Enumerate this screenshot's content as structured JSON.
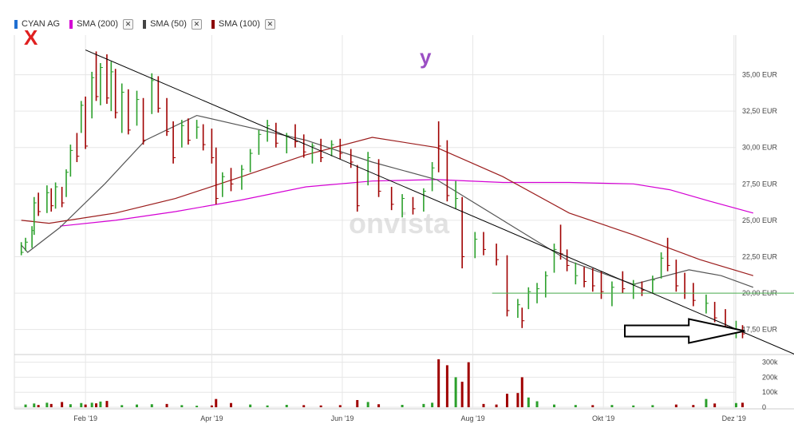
{
  "legend": [
    {
      "label": "CYAN AG",
      "color": "#1f6fd1",
      "closable": false
    },
    {
      "label": "SMA (200)",
      "color": "#d400d4",
      "closable": true
    },
    {
      "label": "SMA (50)",
      "color": "#444444",
      "closable": true
    },
    {
      "label": "SMA (100)",
      "color": "#8b0000",
      "closable": true
    }
  ],
  "close_glyph": "✕",
  "annotations": {
    "x_mark": "X",
    "y_mark": "y"
  },
  "watermark": "onvista",
  "colors": {
    "up": "#2ca02c",
    "down": "#a00000",
    "sma200": "#d400d4",
    "sma50": "#555555",
    "sma100": "#9b1c1c",
    "support": "#4caf50",
    "trendline": "#000000",
    "grid": "#e6e6e6"
  },
  "chart_data": {
    "type": "bar",
    "title": "",
    "x_ticks": [
      "Feb '19",
      "Apr '19",
      "Jun '19",
      "Aug '19",
      "Okt '19",
      "Dez '19"
    ],
    "x_tick_dates": [
      "2019-02-01",
      "2019-04-01",
      "2019-06-01",
      "2019-08-01",
      "2019-10-01",
      "2019-12-01"
    ],
    "xlim": [
      "2019-01-01",
      "2019-12-16"
    ],
    "price_axis": {
      "unit": "EUR",
      "ylim": [
        16.0,
        37.5
      ],
      "ticks": [
        "17,50 EUR",
        "20,00 EUR",
        "22,50 EUR",
        "25,00 EUR",
        "27,50 EUR",
        "30,00 EUR",
        "32,50 EUR",
        "35,00 EUR"
      ],
      "tick_values": [
        17.5,
        20,
        22.5,
        25,
        27.5,
        30,
        32.5,
        35
      ]
    },
    "volume_axis": {
      "ylim": [
        0,
        330000
      ],
      "ticks": [
        "300k",
        "200k",
        "100k",
        "0"
      ],
      "tick_values": [
        300000,
        200000,
        100000,
        0
      ]
    },
    "ohlc": [
      [
        "2019-01-02",
        23.5,
        22.6,
        22.8,
        "u"
      ],
      [
        "2019-01-04",
        23.8,
        22.9,
        23.5,
        "u"
      ],
      [
        "2019-01-07",
        24.6,
        23.1,
        24.3,
        "u"
      ],
      [
        "2019-01-08",
        26.6,
        24.0,
        26.2,
        "u"
      ],
      [
        "2019-01-10",
        26.9,
        25.3,
        25.6,
        "d"
      ],
      [
        "2019-01-14",
        27.4,
        25.5,
        26.9,
        "u"
      ],
      [
        "2019-01-16",
        27.2,
        25.6,
        26.0,
        "d"
      ],
      [
        "2019-01-18",
        27.6,
        25.8,
        27.3,
        "u"
      ],
      [
        "2019-01-21",
        27.3,
        25.9,
        26.2,
        "d"
      ],
      [
        "2019-01-23",
        28.5,
        26.6,
        28.3,
        "u"
      ],
      [
        "2019-01-25",
        30.2,
        28.0,
        29.8,
        "u"
      ],
      [
        "2019-01-28",
        31.0,
        29.0,
        29.4,
        "d"
      ],
      [
        "2019-01-30",
        33.2,
        31.0,
        32.9,
        "u"
      ],
      [
        "2019-02-01",
        33.5,
        29.9,
        30.1,
        "d"
      ],
      [
        "2019-02-04",
        35.2,
        32.0,
        34.8,
        "u"
      ],
      [
        "2019-02-06",
        36.6,
        33.2,
        33.5,
        "d"
      ],
      [
        "2019-02-08",
        35.8,
        32.9,
        35.5,
        "u"
      ],
      [
        "2019-02-11",
        36.4,
        33.0,
        33.4,
        "d"
      ],
      [
        "2019-02-13",
        35.9,
        32.5,
        35.2,
        "u"
      ],
      [
        "2019-02-15",
        35.4,
        32.0,
        32.4,
        "d"
      ],
      [
        "2019-02-18",
        34.4,
        31.0,
        33.8,
        "u"
      ],
      [
        "2019-02-21",
        34.0,
        30.9,
        31.2,
        "d"
      ],
      [
        "2019-02-25",
        33.9,
        31.5,
        33.3,
        "u"
      ],
      [
        "2019-02-28",
        33.4,
        30.2,
        30.5,
        "d"
      ],
      [
        "2019-03-04",
        35.1,
        32.3,
        34.6,
        "u"
      ],
      [
        "2019-03-07",
        34.9,
        32.4,
        32.7,
        "d"
      ],
      [
        "2019-03-11",
        33.4,
        30.8,
        31.1,
        "d"
      ],
      [
        "2019-03-14",
        31.8,
        28.9,
        29.3,
        "d"
      ],
      [
        "2019-03-18",
        31.9,
        30.0,
        31.5,
        "u"
      ],
      [
        "2019-03-21",
        32.0,
        30.2,
        30.5,
        "d"
      ],
      [
        "2019-03-25",
        31.9,
        30.6,
        31.4,
        "u"
      ],
      [
        "2019-03-28",
        31.6,
        29.8,
        30.2,
        "d"
      ],
      [
        "2019-04-01",
        31.3,
        28.9,
        29.3,
        "d"
      ],
      [
        "2019-04-03",
        30.0,
        26.1,
        26.5,
        "d"
      ],
      [
        "2019-04-06",
        28.3,
        26.6,
        28.0,
        "u"
      ],
      [
        "2019-04-10",
        28.6,
        27.0,
        27.5,
        "d"
      ],
      [
        "2019-04-15",
        28.8,
        27.1,
        28.5,
        "u"
      ],
      [
        "2019-04-19",
        29.9,
        28.3,
        29.6,
        "u"
      ],
      [
        "2019-04-23",
        31.2,
        29.5,
        30.9,
        "u"
      ],
      [
        "2019-04-27",
        31.9,
        30.4,
        31.5,
        "u"
      ],
      [
        "2019-05-01",
        31.7,
        30.0,
        30.3,
        "d"
      ],
      [
        "2019-05-06",
        31.0,
        29.6,
        30.8,
        "u"
      ],
      [
        "2019-05-10",
        31.6,
        30.0,
        30.4,
        "d"
      ],
      [
        "2019-05-14",
        30.9,
        29.3,
        29.7,
        "d"
      ],
      [
        "2019-05-18",
        30.3,
        28.9,
        30.1,
        "u"
      ],
      [
        "2019-05-22",
        30.6,
        29.0,
        29.3,
        "d"
      ],
      [
        "2019-05-27",
        30.5,
        29.4,
        30.2,
        "u"
      ],
      [
        "2019-05-31",
        30.6,
        29.2,
        29.6,
        "d"
      ],
      [
        "2019-06-05",
        29.9,
        28.6,
        29.0,
        "d"
      ],
      [
        "2019-06-08",
        28.8,
        25.6,
        26.0,
        "d"
      ],
      [
        "2019-06-13",
        29.7,
        27.4,
        29.3,
        "u"
      ],
      [
        "2019-06-18",
        29.2,
        26.6,
        27.0,
        "d"
      ],
      [
        "2019-06-24",
        27.3,
        25.7,
        26.1,
        "d"
      ],
      [
        "2019-06-29",
        26.8,
        25.2,
        26.5,
        "u"
      ],
      [
        "2019-07-04",
        26.6,
        25.4,
        25.8,
        "d"
      ],
      [
        "2019-07-09",
        27.2,
        25.6,
        27.0,
        "u"
      ],
      [
        "2019-07-13",
        29.0,
        27.0,
        28.6,
        "u"
      ],
      [
        "2019-07-16",
        31.8,
        28.3,
        30.1,
        "d"
      ],
      [
        "2019-07-20",
        30.5,
        26.3,
        26.7,
        "d"
      ],
      [
        "2019-07-24",
        27.7,
        25.8,
        26.5,
        "u"
      ],
      [
        "2019-07-27",
        26.6,
        21.7,
        22.5,
        "d"
      ],
      [
        "2019-08-02",
        24.2,
        22.4,
        23.7,
        "u"
      ],
      [
        "2019-08-06",
        24.2,
        22.6,
        23.0,
        "d"
      ],
      [
        "2019-08-12",
        23.4,
        21.9,
        22.3,
        "d"
      ],
      [
        "2019-08-17",
        22.6,
        18.4,
        18.8,
        "d"
      ],
      [
        "2019-08-22",
        19.6,
        18.3,
        19.2,
        "u"
      ],
      [
        "2019-08-24",
        19.0,
        17.6,
        18.1,
        "d"
      ],
      [
        "2019-08-27",
        20.4,
        18.9,
        20.1,
        "u"
      ],
      [
        "2019-08-31",
        20.7,
        19.3,
        20.3,
        "u"
      ],
      [
        "2019-09-04",
        21.5,
        19.7,
        21.2,
        "u"
      ],
      [
        "2019-09-08",
        23.4,
        21.4,
        23.0,
        "u"
      ],
      [
        "2019-09-11",
        24.7,
        22.3,
        22.7,
        "d"
      ],
      [
        "2019-09-14",
        23.0,
        21.5,
        21.9,
        "d"
      ],
      [
        "2019-09-18",
        22.1,
        20.6,
        21.2,
        "u"
      ],
      [
        "2019-09-22",
        21.8,
        20.4,
        20.8,
        "d"
      ],
      [
        "2019-09-26",
        21.7,
        20.1,
        20.5,
        "d"
      ],
      [
        "2019-09-30",
        21.5,
        19.6,
        20.1,
        "d"
      ],
      [
        "2019-10-05",
        20.8,
        19.1,
        20.4,
        "u"
      ],
      [
        "2019-10-10",
        21.5,
        20.0,
        20.3,
        "d"
      ],
      [
        "2019-10-15",
        20.9,
        19.6,
        20.6,
        "u"
      ],
      [
        "2019-10-19",
        20.8,
        19.8,
        20.2,
        "d"
      ],
      [
        "2019-10-24",
        21.2,
        20.0,
        20.9,
        "u"
      ],
      [
        "2019-10-28",
        22.8,
        21.0,
        22.4,
        "u"
      ],
      [
        "2019-10-31",
        23.8,
        21.5,
        21.9,
        "d"
      ],
      [
        "2019-11-04",
        22.3,
        20.1,
        20.5,
        "d"
      ],
      [
        "2019-11-08",
        21.4,
        19.6,
        20.0,
        "d"
      ],
      [
        "2019-11-12",
        20.7,
        19.1,
        19.5,
        "d"
      ],
      [
        "2019-11-18",
        19.9,
        18.6,
        19.3,
        "u"
      ],
      [
        "2019-11-22",
        19.4,
        18.0,
        18.3,
        "d"
      ],
      [
        "2019-11-27",
        18.9,
        17.4,
        17.7,
        "d"
      ],
      [
        "2019-12-02",
        18.1,
        16.9,
        17.4,
        "u"
      ],
      [
        "2019-12-05",
        17.8,
        16.9,
        17.2,
        "d"
      ]
    ],
    "volume": [
      [
        "2019-01-04",
        18000,
        "u"
      ],
      [
        "2019-01-08",
        25000,
        "u"
      ],
      [
        "2019-01-10",
        15000,
        "d"
      ],
      [
        "2019-01-14",
        30000,
        "u"
      ],
      [
        "2019-01-16",
        22000,
        "d"
      ],
      [
        "2019-01-21",
        35000,
        "d"
      ],
      [
        "2019-01-25",
        20000,
        "u"
      ],
      [
        "2019-01-30",
        28000,
        "u"
      ],
      [
        "2019-02-01",
        18000,
        "d"
      ],
      [
        "2019-02-04",
        30000,
        "u"
      ],
      [
        "2019-02-06",
        26000,
        "d"
      ],
      [
        "2019-02-08",
        38000,
        "u"
      ],
      [
        "2019-02-11",
        42000,
        "d"
      ],
      [
        "2019-02-18",
        14000,
        "u"
      ],
      [
        "2019-02-25",
        18000,
        "u"
      ],
      [
        "2019-03-04",
        20000,
        "u"
      ],
      [
        "2019-03-11",
        22000,
        "d"
      ],
      [
        "2019-03-18",
        14000,
        "u"
      ],
      [
        "2019-03-25",
        10000,
        "u"
      ],
      [
        "2019-04-01",
        12000,
        "d"
      ],
      [
        "2019-04-03",
        55000,
        "d"
      ],
      [
        "2019-04-10",
        28000,
        "d"
      ],
      [
        "2019-04-19",
        18000,
        "u"
      ],
      [
        "2019-04-27",
        12000,
        "u"
      ],
      [
        "2019-05-06",
        16000,
        "u"
      ],
      [
        "2019-05-14",
        14000,
        "d"
      ],
      [
        "2019-05-22",
        12000,
        "d"
      ],
      [
        "2019-05-31",
        14000,
        "d"
      ],
      [
        "2019-06-08",
        48000,
        "d"
      ],
      [
        "2019-06-13",
        35000,
        "u"
      ],
      [
        "2019-06-18",
        20000,
        "d"
      ],
      [
        "2019-06-29",
        16000,
        "u"
      ],
      [
        "2019-07-09",
        22000,
        "u"
      ],
      [
        "2019-07-13",
        30000,
        "u"
      ],
      [
        "2019-07-16",
        320000,
        "d"
      ],
      [
        "2019-07-20",
        280000,
        "d"
      ],
      [
        "2019-07-24",
        200000,
        "u"
      ],
      [
        "2019-07-27",
        170000,
        "d"
      ],
      [
        "2019-07-30",
        300000,
        "d"
      ],
      [
        "2019-08-06",
        22000,
        "d"
      ],
      [
        "2019-08-12",
        18000,
        "d"
      ],
      [
        "2019-08-17",
        90000,
        "d"
      ],
      [
        "2019-08-22",
        95000,
        "d"
      ],
      [
        "2019-08-24",
        200000,
        "d"
      ],
      [
        "2019-08-27",
        65000,
        "u"
      ],
      [
        "2019-08-31",
        40000,
        "u"
      ],
      [
        "2019-09-08",
        18000,
        "u"
      ],
      [
        "2019-09-18",
        15000,
        "u"
      ],
      [
        "2019-09-26",
        14000,
        "d"
      ],
      [
        "2019-10-05",
        15000,
        "u"
      ],
      [
        "2019-10-15",
        12000,
        "u"
      ],
      [
        "2019-10-24",
        14000,
        "u"
      ],
      [
        "2019-11-04",
        18000,
        "d"
      ],
      [
        "2019-11-12",
        15000,
        "d"
      ],
      [
        "2019-11-18",
        55000,
        "u"
      ],
      [
        "2019-11-22",
        25000,
        "d"
      ],
      [
        "2019-12-02",
        28000,
        "u"
      ],
      [
        "2019-12-05",
        30000,
        "d"
      ]
    ],
    "series": [
      {
        "name": "SMA (200)",
        "color": "#d400d4",
        "points": [
          [
            "2019-01-20",
            24.6
          ],
          [
            "2019-02-15",
            25.0
          ],
          [
            "2019-03-15",
            25.6
          ],
          [
            "2019-04-15",
            26.4
          ],
          [
            "2019-05-15",
            27.3
          ],
          [
            "2019-06-15",
            27.7
          ],
          [
            "2019-07-15",
            27.8
          ],
          [
            "2019-08-15",
            27.6
          ],
          [
            "2019-09-15",
            27.6
          ],
          [
            "2019-10-15",
            27.5
          ],
          [
            "2019-11-01",
            27.1
          ],
          [
            "2019-11-20",
            26.3
          ],
          [
            "2019-12-10",
            25.5
          ]
        ]
      },
      {
        "name": "SMA (50)",
        "color": "#555555",
        "points": [
          [
            "2019-01-02",
            23.3
          ],
          [
            "2019-01-05",
            22.8
          ],
          [
            "2019-01-20",
            24.5
          ],
          [
            "2019-02-10",
            27.5
          ],
          [
            "2019-03-01",
            30.5
          ],
          [
            "2019-03-25",
            32.2
          ],
          [
            "2019-04-15",
            31.5
          ],
          [
            "2019-05-15",
            30.5
          ],
          [
            "2019-06-15",
            29.0
          ],
          [
            "2019-07-15",
            27.8
          ],
          [
            "2019-08-15",
            25.0
          ],
          [
            "2019-09-15",
            22.2
          ],
          [
            "2019-10-15",
            20.6
          ],
          [
            "2019-11-10",
            21.6
          ],
          [
            "2019-11-25",
            21.2
          ],
          [
            "2019-12-10",
            20.4
          ]
        ]
      },
      {
        "name": "SMA (100)",
        "color": "#9b1c1c",
        "points": [
          [
            "2019-01-02",
            25.0
          ],
          [
            "2019-01-15",
            24.8
          ],
          [
            "2019-02-15",
            25.5
          ],
          [
            "2019-03-15",
            26.5
          ],
          [
            "2019-04-15",
            28.0
          ],
          [
            "2019-05-15",
            29.5
          ],
          [
            "2019-06-15",
            30.7
          ],
          [
            "2019-07-15",
            30.0
          ],
          [
            "2019-08-15",
            28.0
          ],
          [
            "2019-09-15",
            25.5
          ],
          [
            "2019-10-15",
            24.0
          ],
          [
            "2019-11-15",
            22.3
          ],
          [
            "2019-12-10",
            21.2
          ]
        ]
      }
    ],
    "support_line": {
      "value": 20.0,
      "from": "2019-08-10",
      "to": "2019-12-16"
    },
    "trend_line": {
      "from": [
        "2019-02-01",
        36.7
      ],
      "to": [
        "2019-12-16",
        16.8
      ]
    },
    "arrow": {
      "from": [
        "2019-10-11",
        17.4
      ],
      "to": [
        "2019-12-06",
        17.4
      ]
    }
  }
}
